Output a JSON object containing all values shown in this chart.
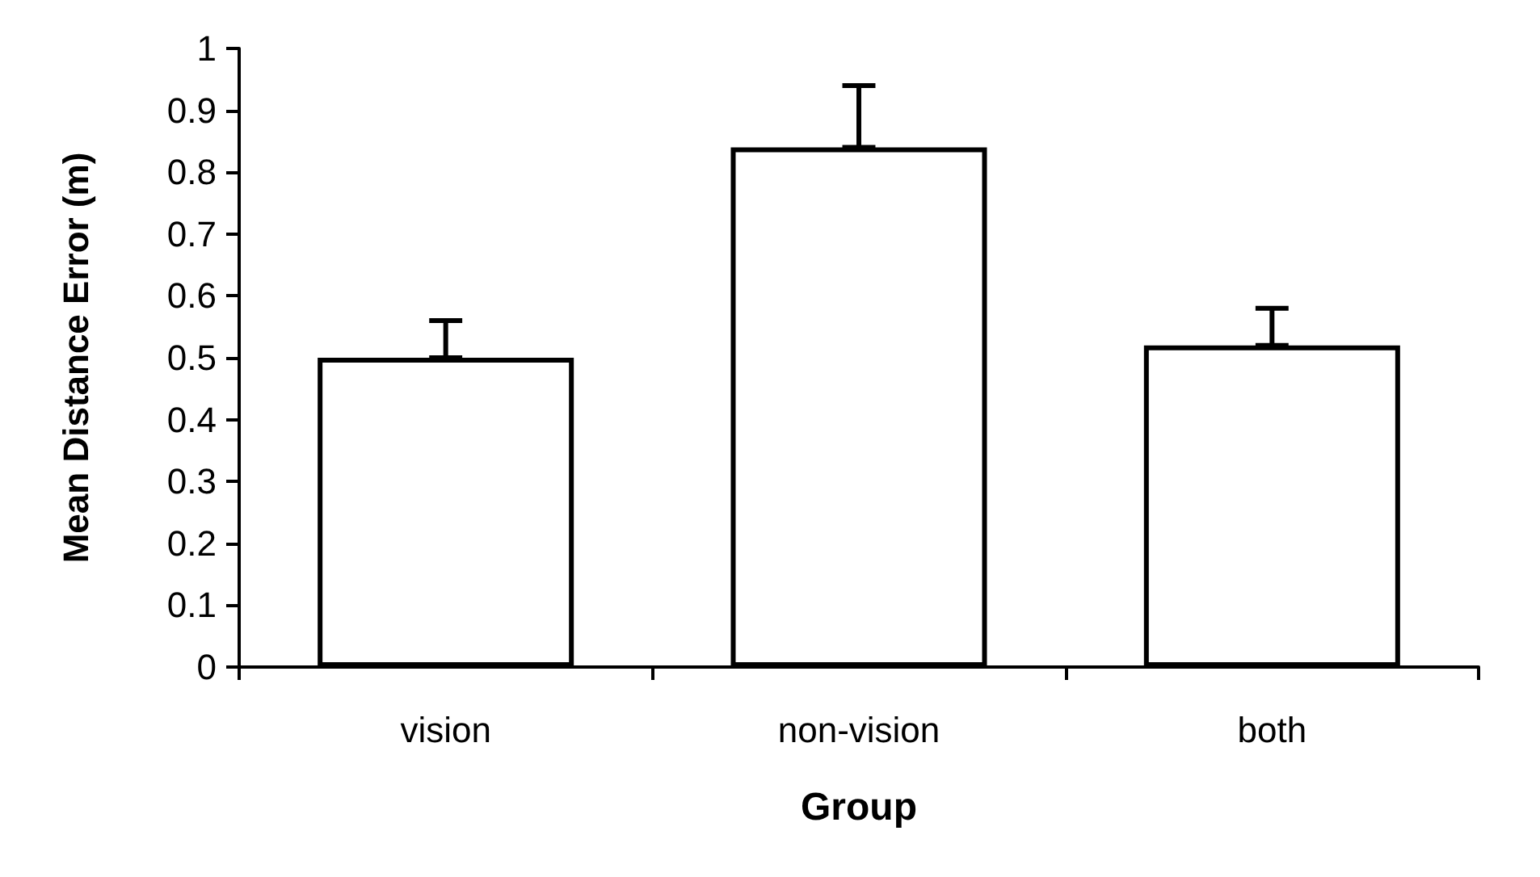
{
  "chart_data": {
    "type": "bar",
    "xlabel": "Group",
    "ylabel": "Mean Distance Error (m)",
    "categories": [
      "vision",
      "non-vision",
      "both"
    ],
    "values": [
      0.5,
      0.84,
      0.52
    ],
    "errors": [
      [
        0.5,
        0.56
      ],
      [
        0.84,
        0.94
      ],
      [
        0.52,
        0.58
      ]
    ],
    "color": "#ffffff",
    "ylim": [
      0,
      1
    ],
    "yticks": [
      0,
      0.1,
      0.2,
      0.3,
      0.4,
      0.5,
      0.6,
      0.7,
      0.8,
      0.9,
      1
    ]
  }
}
